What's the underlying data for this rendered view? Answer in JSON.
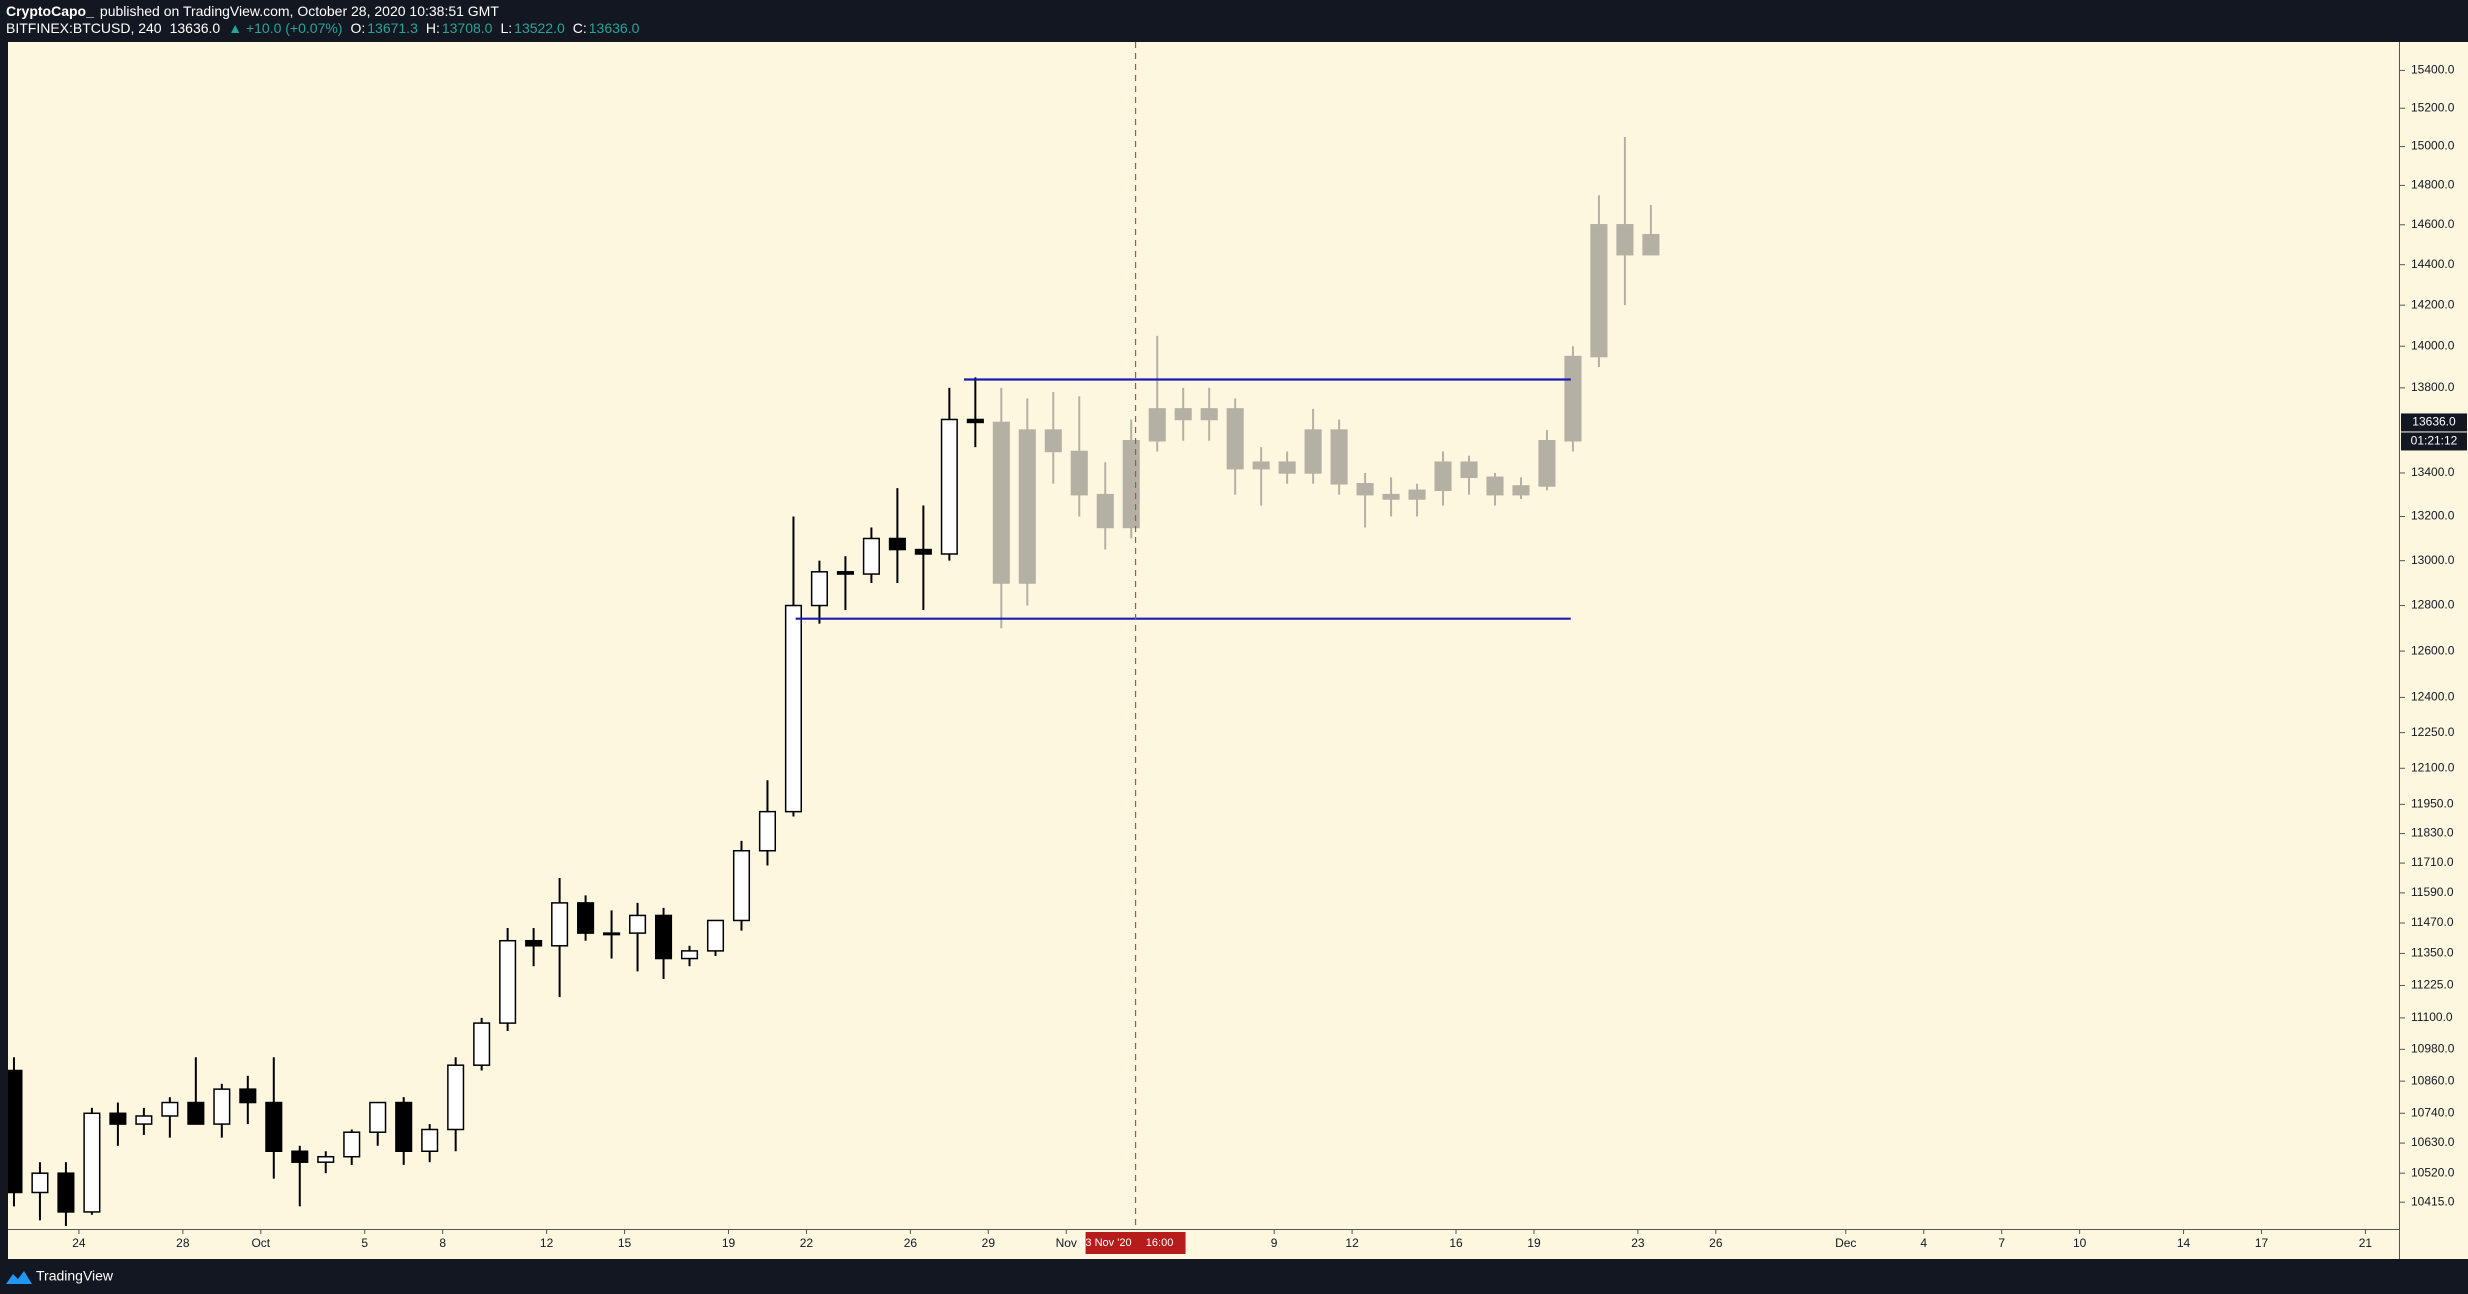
{
  "header": {
    "author": "CryptoCapo_",
    "published": "published on TradingView.com, October 28, 2020 10:38:51 GMT",
    "symbol": "BITFINEX:BTCUSD, 240",
    "last": "13636.0",
    "change": "▲ +10.0 (+0.07%)",
    "o_label": "O:",
    "open": "13671.3",
    "h_label": "H:",
    "high": "13708.0",
    "l_label": "L:",
    "low": "13522.0",
    "c_label": "C:",
    "close": "13636.0"
  },
  "footer": {
    "brand": "TradingView"
  },
  "chart_data": {
    "type": "candlestick",
    "log_scale": true,
    "ylim": [
      10319,
      15552
    ],
    "yticks": [
      {
        "value": 15400,
        "label": "15400.0"
      },
      {
        "value": 15200,
        "label": "15200.0"
      },
      {
        "value": 15000,
        "label": "15000.0"
      },
      {
        "value": 14800,
        "label": "14800.0"
      },
      {
        "value": 14600,
        "label": "14600.0"
      },
      {
        "value": 14400,
        "label": "14400.0"
      },
      {
        "value": 14200,
        "label": "14200.0"
      },
      {
        "value": 14000,
        "label": "14000.0"
      },
      {
        "value": 13800,
        "label": "13800.0"
      },
      {
        "value": 13400,
        "label": "13400.0"
      },
      {
        "value": 13200,
        "label": "13200.0"
      },
      {
        "value": 13000,
        "label": "13000.0"
      },
      {
        "value": 12800,
        "label": "12800.0"
      },
      {
        "value": 12600,
        "label": "12600.0"
      },
      {
        "value": 12400,
        "label": "12400.0"
      },
      {
        "value": 12250,
        "label": "12250.0"
      },
      {
        "value": 12100,
        "label": "12100.0"
      },
      {
        "value": 11950,
        "label": "11950.0"
      },
      {
        "value": 11830,
        "label": "11830.0"
      },
      {
        "value": 11710,
        "label": "11710.0"
      },
      {
        "value": 11590,
        "label": "11590.0"
      },
      {
        "value": 11470,
        "label": "11470.0"
      },
      {
        "value": 11350,
        "label": "11350.0"
      },
      {
        "value": 11225,
        "label": "11225.0"
      },
      {
        "value": 11100,
        "label": "11100.0"
      },
      {
        "value": 10980,
        "label": "10980.0"
      },
      {
        "value": 10860,
        "label": "10860.0"
      },
      {
        "value": 10740,
        "label": "10740.0"
      },
      {
        "value": 10630,
        "label": "10630.0"
      },
      {
        "value": 10520,
        "label": "10520.0"
      },
      {
        "value": 10415,
        "label": "10415.0"
      }
    ],
    "xlim": [
      "2020-09-21T06:30",
      "2020-12-22T07:00"
    ],
    "xticks": [
      {
        "value": "2020-09-24T00:00",
        "label": "24"
      },
      {
        "value": "2020-09-28T00:00",
        "label": "28"
      },
      {
        "value": "2020-10-01T00:00",
        "label": "Oct"
      },
      {
        "value": "2020-10-05T00:00",
        "label": "5"
      },
      {
        "value": "2020-10-08T00:00",
        "label": "8"
      },
      {
        "value": "2020-10-12T00:00",
        "label": "12"
      },
      {
        "value": "2020-10-15T00:00",
        "label": "15"
      },
      {
        "value": "2020-10-19T00:00",
        "label": "19"
      },
      {
        "value": "2020-10-22T00:00",
        "label": "22"
      },
      {
        "value": "2020-10-26T00:00",
        "label": "26"
      },
      {
        "value": "2020-10-29T00:00",
        "label": "29"
      },
      {
        "value": "2020-11-01T00:00",
        "label": "Nov"
      },
      {
        "value": "2020-11-09T00:00",
        "label": "9"
      },
      {
        "value": "2020-11-12T00:00",
        "label": "12"
      },
      {
        "value": "2020-11-16T00:00",
        "label": "16"
      },
      {
        "value": "2020-11-19T00:00",
        "label": "19"
      },
      {
        "value": "2020-11-23T00:00",
        "label": "23"
      },
      {
        "value": "2020-11-26T00:00",
        "label": "26"
      },
      {
        "value": "2020-12-01T00:00",
        "label": "Dec"
      },
      {
        "value": "2020-12-04T00:00",
        "label": "4"
      },
      {
        "value": "2020-12-07T00:00",
        "label": "7"
      },
      {
        "value": "2020-12-10T00:00",
        "label": "10"
      },
      {
        "value": "2020-12-14T00:00",
        "label": "14"
      },
      {
        "value": "2020-12-17T00:00",
        "label": "17"
      },
      {
        "value": "2020-12-21T00:00",
        "label": "21"
      }
    ],
    "candles": {
      "up_color": "#ffffff",
      "down_color": "#000000",
      "edge_color": "#000000",
      "x": [
        "2020-09-21T12:00",
        "2020-09-22T12:00",
        "2020-09-23T12:00",
        "2020-09-24T12:00",
        "2020-09-25T12:00",
        "2020-09-26T12:00",
        "2020-09-27T12:00",
        "2020-09-28T12:00",
        "2020-09-29T12:00",
        "2020-09-30T12:00",
        "2020-10-01T12:00",
        "2020-10-02T12:00",
        "2020-10-03T12:00",
        "2020-10-04T12:00",
        "2020-10-05T12:00",
        "2020-10-06T12:00",
        "2020-10-07T12:00",
        "2020-10-08T12:00",
        "2020-10-09T12:00",
        "2020-10-10T12:00",
        "2020-10-11T12:00",
        "2020-10-12T12:00",
        "2020-10-13T12:00",
        "2020-10-14T12:00",
        "2020-10-15T12:00",
        "2020-10-16T12:00",
        "2020-10-17T12:00",
        "2020-10-18T12:00",
        "2020-10-19T12:00",
        "2020-10-20T12:00",
        "2020-10-21T12:00",
        "2020-10-22T12:00",
        "2020-10-23T12:00",
        "2020-10-24T12:00",
        "2020-10-25T12:00",
        "2020-10-26T12:00",
        "2020-10-27T12:00",
        "2020-10-28T12:00"
      ],
      "open": [
        10900,
        10450,
        10520,
        10380,
        10740,
        10700,
        10730,
        10780,
        10700,
        10830,
        10780,
        10600,
        10560,
        10580,
        10670,
        10780,
        10600,
        10680,
        10920,
        11080,
        11400,
        11380,
        11550,
        11430,
        11430,
        11500,
        11330,
        11360,
        11480,
        11760,
        11920,
        12800,
        12950,
        12940,
        13100,
        13050,
        13030,
        13650
      ],
      "high": [
        10950,
        10560,
        10560,
        10760,
        10780,
        10760,
        10800,
        10950,
        10850,
        10880,
        10950,
        10620,
        10600,
        10680,
        10780,
        10800,
        10700,
        10950,
        11100,
        11450,
        11450,
        11650,
        11580,
        11520,
        11550,
        11530,
        11380,
        11480,
        11800,
        12050,
        13200,
        13000,
        13020,
        13150,
        13330,
        13250,
        13800,
        13850
      ],
      "low": [
        10400,
        10350,
        10330,
        10370,
        10620,
        10660,
        10650,
        10700,
        10650,
        10700,
        10500,
        10400,
        10520,
        10550,
        10620,
        10550,
        10560,
        10600,
        10900,
        11050,
        11300,
        11180,
        11400,
        11330,
        11280,
        11250,
        11300,
        11340,
        11440,
        11700,
        11900,
        12720,
        12780,
        12900,
        12900,
        12780,
        13000,
        13520
      ],
      "close": [
        10450,
        10520,
        10380,
        10740,
        10700,
        10730,
        10780,
        10700,
        10830,
        10780,
        10600,
        10560,
        10580,
        10670,
        10780,
        10600,
        10680,
        10920,
        11080,
        11400,
        11380,
        11550,
        11430,
        11430,
        11500,
        11330,
        11360,
        11480,
        11760,
        11920,
        12800,
        12950,
        12940,
        13100,
        13050,
        13030,
        13650,
        13636
      ]
    },
    "projection": {
      "color": "#b5b0a4",
      "x": [
        "2020-10-29T12:00",
        "2020-10-30T12:00",
        "2020-10-31T12:00",
        "2020-11-01T12:00",
        "2020-11-02T12:00",
        "2020-11-03T12:00",
        "2020-11-04T12:00",
        "2020-11-05T12:00",
        "2020-11-06T12:00",
        "2020-11-07T12:00",
        "2020-11-08T12:00",
        "2020-11-09T12:00",
        "2020-11-10T12:00",
        "2020-11-11T12:00",
        "2020-11-12T12:00",
        "2020-11-13T12:00",
        "2020-11-14T12:00",
        "2020-11-15T12:00",
        "2020-11-16T12:00",
        "2020-11-17T12:00",
        "2020-11-18T12:00",
        "2020-11-19T12:00",
        "2020-11-20T12:00",
        "2020-11-21T12:00",
        "2020-11-22T12:00",
        "2020-11-23T12:00"
      ],
      "open": [
        13636,
        12900,
        13600,
        13500,
        13300,
        13150,
        13550,
        13700,
        13650,
        13700,
        13420,
        13450,
        13400,
        13600,
        13350,
        13300,
        13280,
        13320,
        13450,
        13380,
        13300,
        13340,
        13550,
        13950,
        14600,
        14450
      ],
      "high": [
        13800,
        13750,
        13780,
        13760,
        13450,
        13650,
        14050,
        13800,
        13800,
        13750,
        13520,
        13500,
        13700,
        13650,
        13400,
        13380,
        13350,
        13500,
        13480,
        13400,
        13380,
        13600,
        14000,
        14750,
        15050,
        14700
      ],
      "low": [
        12700,
        12800,
        13350,
        13200,
        13050,
        13100,
        13500,
        13550,
        13550,
        13300,
        13250,
        13350,
        13350,
        13300,
        13150,
        13200,
        13200,
        13250,
        13300,
        13250,
        13280,
        13320,
        13500,
        13900,
        14200,
        14450
      ],
      "close": [
        12900,
        13600,
        13500,
        13300,
        13150,
        13550,
        13700,
        13650,
        13700,
        13420,
        13450,
        13400,
        13600,
        13350,
        13300,
        13280,
        13320,
        13450,
        13380,
        13300,
        13340,
        13550,
        13950,
        14600,
        14450,
        14550
      ]
    },
    "levels": {
      "color": "#1c1cb4",
      "items": [
        {
          "price": 13840,
          "x": [
            "2020-10-28T01:30",
            "2020-11-20T10:00"
          ]
        },
        {
          "price": 12742,
          "x": [
            "2020-10-21T14:00",
            "2020-11-20T10:00"
          ]
        }
      ]
    },
    "crosshair": {
      "x": "2020-11-03T16:00",
      "color": "#b5514c",
      "label": "03 Nov '20",
      "time": "16:00"
    },
    "last_price": {
      "value": 13636,
      "label": "13636.0"
    },
    "countdown": "01:21:12"
  }
}
